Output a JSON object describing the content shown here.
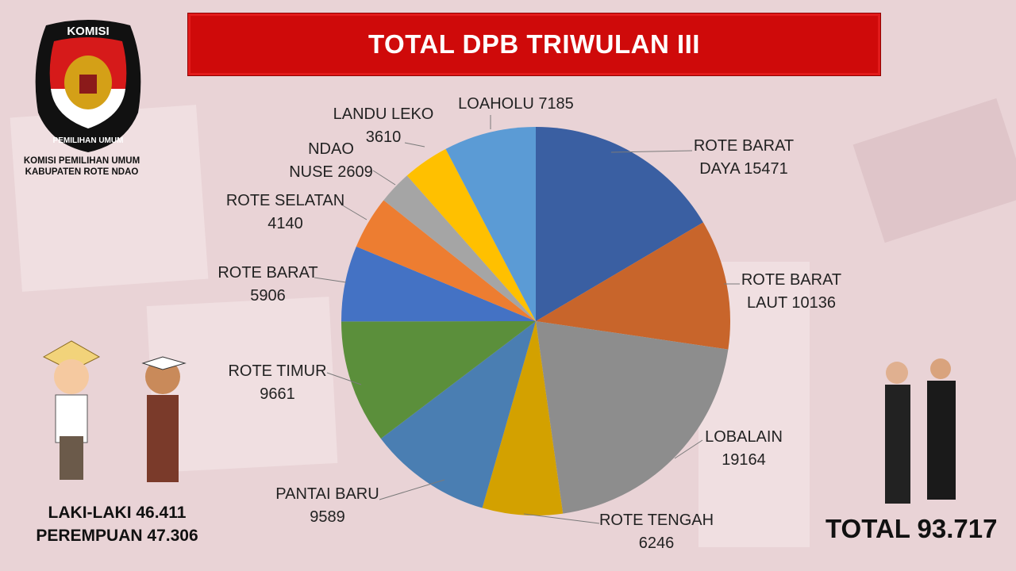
{
  "title": "TOTAL DPB TRIWULAN III",
  "logo": {
    "top_text": "KOMISI",
    "bottom_text": "PEMILIHAN UMUM"
  },
  "organization": {
    "line1": "KOMISI PEMILIHAN UMUM",
    "line2": "KABUPATEN ROTE NDAO"
  },
  "gender": {
    "male": "LAKI-LAKI 46.411",
    "female": "PEREMPUAN 47.306"
  },
  "total": "TOTAL 93.717",
  "chart_data": {
    "type": "pie",
    "title": "TOTAL DPB TRIWULAN III",
    "categories": [
      "ROTE BARAT DAYA",
      "ROTE BARAT LAUT",
      "LOBALAIN",
      "ROTE TENGAH",
      "PANTAI BARU",
      "ROTE TIMUR",
      "ROTE BARAT",
      "ROTE SELATAN",
      "NDAO NUSE",
      "LANDU LEKO",
      "LOAHOLU"
    ],
    "values": [
      15471,
      10136,
      19164,
      6246,
      9589,
      9661,
      5906,
      4140,
      2609,
      3610,
      7185
    ],
    "colors": [
      "#3a5fa2",
      "#c8652b",
      "#8d8d8d",
      "#d3a100",
      "#4a7eb2",
      "#5b8f3b",
      "#4472c4",
      "#ed7d31",
      "#a5a5a5",
      "#ffc000",
      "#5b9bd5"
    ],
    "start": "top",
    "direction": "clockwise",
    "legend": "none"
  }
}
